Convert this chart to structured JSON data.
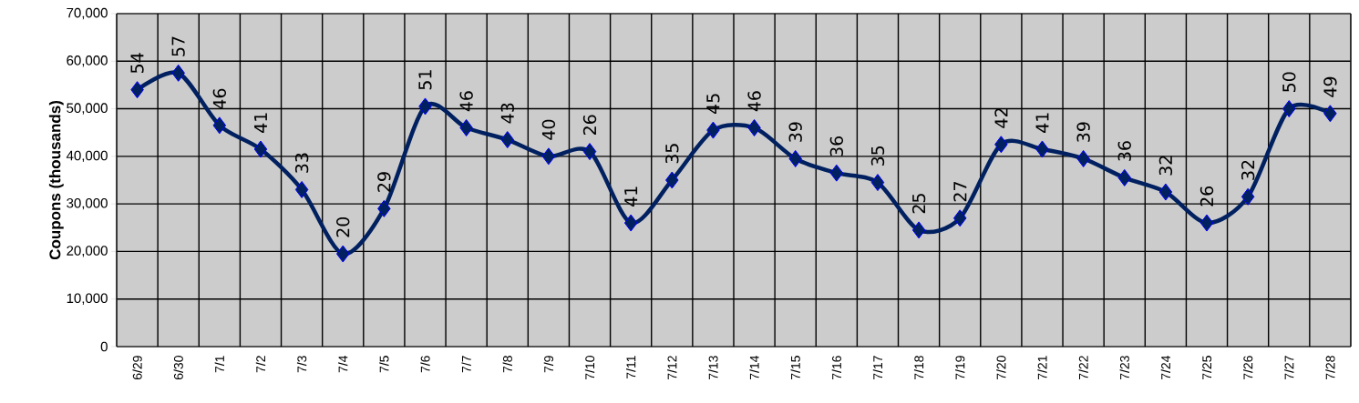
{
  "chart_data": {
    "type": "line",
    "ylabel": "Coupons (thousands)",
    "categories": [
      "6/29",
      "6/30",
      "7/1",
      "7/2",
      "7/3",
      "7/4",
      "7/5",
      "7/6",
      "7/7",
      "7/8",
      "7/9",
      "7/10",
      "7/11",
      "7/12",
      "7/13",
      "7/14",
      "7/15",
      "7/16",
      "7/17",
      "7/18",
      "7/19",
      "7/20",
      "7/21",
      "7/22",
      "7/23",
      "7/24",
      "7/25",
      "7/26",
      "7/27",
      "7/28"
    ],
    "values": [
      54000,
      57500,
      46500,
      41500,
      33000,
      19500,
      29000,
      50500,
      46000,
      43500,
      40000,
      41000,
      26000,
      35000,
      45500,
      46000,
      39500,
      36500,
      34500,
      24500,
      27000,
      42500,
      41500,
      39500,
      35500,
      32500,
      26000,
      31500,
      50000,
      49000
    ],
    "annotations": [
      "54",
      "57",
      "46",
      "41",
      "33",
      "20",
      "29",
      "51",
      "46",
      "43",
      "40",
      "26",
      "41",
      "35",
      "45",
      "46",
      "39",
      "36",
      "35",
      "25",
      "27",
      "42",
      "41",
      "39",
      "36",
      "32",
      "26",
      "32",
      "50",
      "49"
    ],
    "color": "#002060",
    "marker": "diamond",
    "line_style": "solid",
    "grid": true,
    "ylim": [
      0,
      70000
    ],
    "yticks": [
      {
        "value": 0,
        "label": "0"
      },
      {
        "value": 10000,
        "label": "10,000"
      },
      {
        "value": 20000,
        "label": "20,000"
      },
      {
        "value": 30000,
        "label": "30,000"
      },
      {
        "value": 40000,
        "label": "40,000"
      },
      {
        "value": 50000,
        "label": "50,000"
      },
      {
        "value": 60000,
        "label": "60,000"
      },
      {
        "value": 70000,
        "label": "70,000"
      }
    ]
  }
}
